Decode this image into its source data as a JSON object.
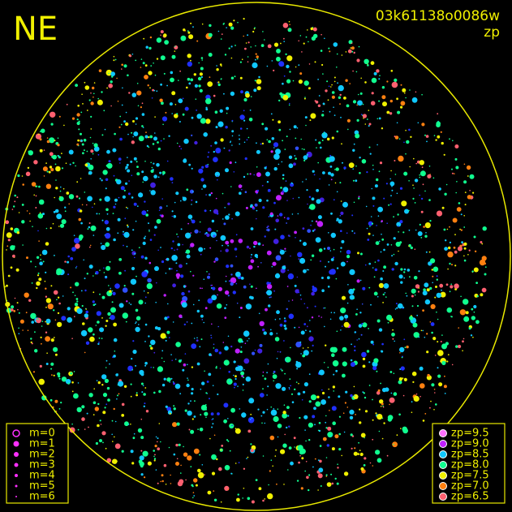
{
  "header": {
    "direction": "NE",
    "image_id": "03k61138o0086w",
    "mode": "zp"
  },
  "legend_magnitude": [
    "m=0",
    "m=1",
    "m=2",
    "m=3",
    "m=4",
    "m=5",
    "m=6"
  ],
  "legend_zp": [
    {
      "label": "zp=9.5",
      "color": "#ff70ff"
    },
    {
      "label": "zp=9.0",
      "color": "#c020ff"
    },
    {
      "label": "zp=8.5",
      "color": "#10c8ff"
    },
    {
      "label": "zp=8.0",
      "color": "#10ff90"
    },
    {
      "label": "zp=7.5",
      "color": "#f0f000"
    },
    {
      "label": "zp=7.0",
      "color": "#ff8010"
    },
    {
      "label": "zp=6.5",
      "color": "#ff6070"
    }
  ]
}
